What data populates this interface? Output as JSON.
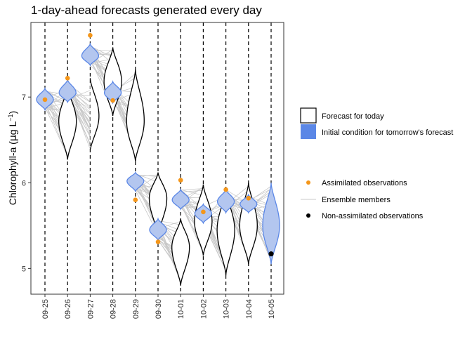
{
  "chart_data": {
    "type": "violin",
    "title": "1-day-ahead forecasts generated every day",
    "ylabel_main": "Chlorophyll-a (",
    "ylabel_mu": "μ",
    "ylabel_unit": "g L",
    "ylabel_exp": "−1",
    "ylabel_close": ")",
    "ylim": [
      4.7,
      7.87
    ],
    "yticks": [
      5,
      6,
      7
    ],
    "categories": [
      "09-25",
      "09-26",
      "09-27",
      "09-28",
      "09-29",
      "09-30",
      "10-01",
      "10-02",
      "10-03",
      "10-04",
      "10-05"
    ],
    "forecast_for_today": [
      {
        "date": "09-26",
        "center": 6.72,
        "low": 6.27,
        "high": 7.12
      },
      {
        "date": "09-27",
        "center": 6.78,
        "low": 6.37,
        "high": 7.22
      },
      {
        "date": "09-28",
        "center": 7.18,
        "low": 6.78,
        "high": 7.58
      },
      {
        "date": "09-29",
        "center": 6.72,
        "low": 6.25,
        "high": 7.32
      },
      {
        "date": "09-30",
        "center": 5.82,
        "low": 5.38,
        "high": 6.12
      },
      {
        "date": "10-01",
        "center": 5.25,
        "low": 4.8,
        "high": 5.58
      },
      {
        "date": "10-02",
        "center": 5.55,
        "low": 5.15,
        "high": 5.98
      },
      {
        "date": "10-03",
        "center": 5.45,
        "low": 4.92,
        "high": 5.92
      },
      {
        "date": "10-04",
        "center": 5.5,
        "low": 5.05,
        "high": 6.0
      }
    ],
    "initial_condition": [
      {
        "date": "09-25",
        "center": 6.97,
        "low": 6.85,
        "high": 7.1
      },
      {
        "date": "09-26",
        "center": 7.05,
        "low": 6.94,
        "high": 7.2
      },
      {
        "date": "09-27",
        "center": 7.48,
        "low": 7.37,
        "high": 7.62
      },
      {
        "date": "09-28",
        "center": 7.05,
        "low": 6.93,
        "high": 7.18
      },
      {
        "date": "09-29",
        "center": 6.02,
        "low": 5.9,
        "high": 6.12
      },
      {
        "date": "09-30",
        "center": 5.45,
        "low": 5.33,
        "high": 5.58
      },
      {
        "date": "10-01",
        "center": 5.8,
        "low": 5.69,
        "high": 5.92
      },
      {
        "date": "10-02",
        "center": 5.64,
        "low": 5.53,
        "high": 5.75
      },
      {
        "date": "10-03",
        "center": 5.78,
        "low": 5.65,
        "high": 5.92
      },
      {
        "date": "10-04",
        "center": 5.75,
        "low": 5.65,
        "high": 5.86
      },
      {
        "date": "10-05",
        "center": 5.5,
        "low": 5.05,
        "high": 6.0
      }
    ],
    "assimilated_observations": [
      {
        "date": "09-25",
        "value": 6.97
      },
      {
        "date": "09-26",
        "value": 7.22
      },
      {
        "date": "09-27",
        "value": 7.72
      },
      {
        "date": "09-28",
        "value": 6.96
      },
      {
        "date": "09-29",
        "value": 5.8
      },
      {
        "date": "09-30",
        "value": 5.31
      },
      {
        "date": "10-01",
        "value": 6.03
      },
      {
        "date": "10-02",
        "value": 5.66
      },
      {
        "date": "10-03",
        "value": 5.92
      },
      {
        "date": "10-04",
        "value": 5.82
      }
    ],
    "non_assimilated_observations": [
      {
        "date": "10-05",
        "value": 5.17
      }
    ],
    "legend": {
      "forecast_label": "Forecast for today",
      "initial_label": "Initial condition for tomorrow's forecast",
      "assimilated_label": "Assimilated observations",
      "ensemble_label": "Ensemble members",
      "non_assimilated_label": "Non-assimilated observations"
    },
    "colors": {
      "initial_fill": "#b3c6ef",
      "initial_stroke": "#5b87e6",
      "legend_blue": "#5b87e6",
      "forecast_stroke": "#000000",
      "ensemble": "#c8c8c8",
      "assimilated": "#f4961a",
      "non_assimilated": "#000000"
    },
    "grid": false,
    "legend_position": "right"
  }
}
